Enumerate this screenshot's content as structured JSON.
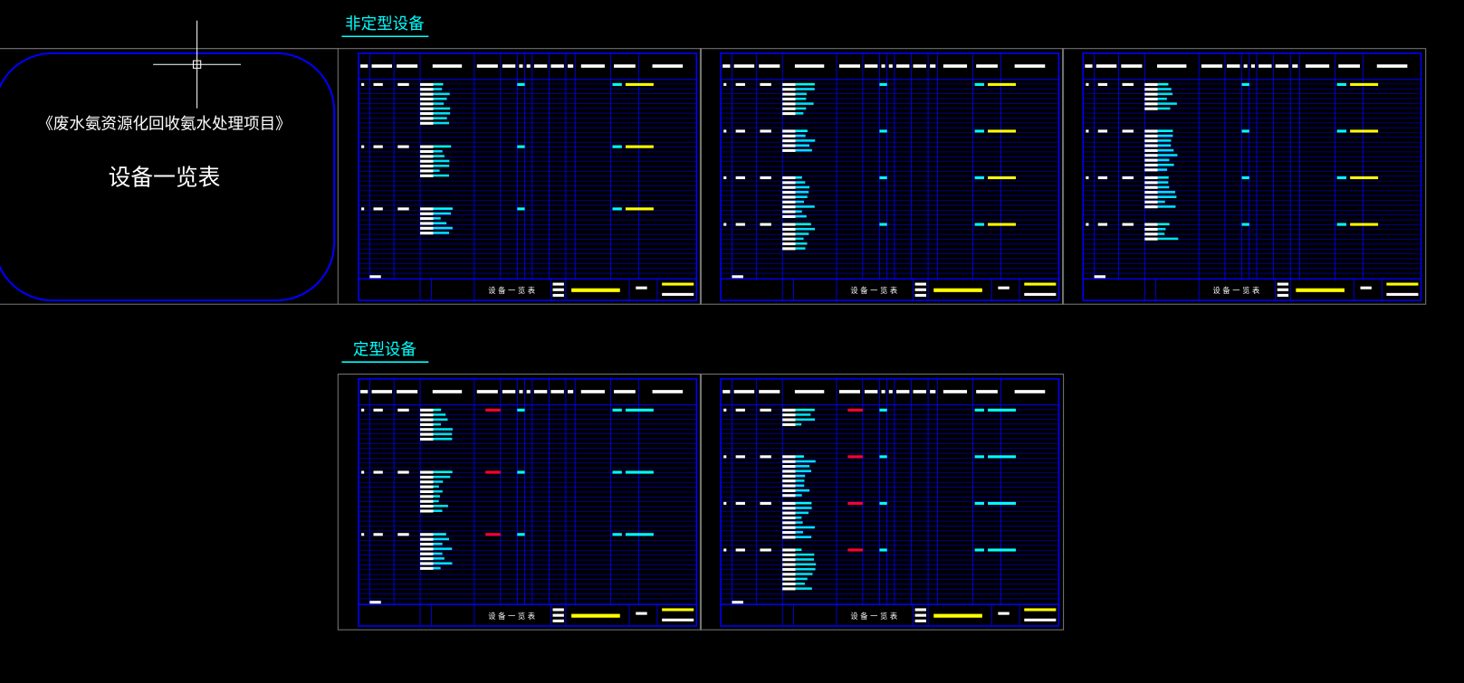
{
  "sections": {
    "non_standard": "非定型设备",
    "standard": "定型设备"
  },
  "cover": {
    "project": "《废水氨资源化回收氨水处理项目》",
    "title": "设备一览表"
  },
  "sheets": [
    {
      "title": "设 备 一 览 表"
    },
    {
      "title": "设 备 一 览 表"
    },
    {
      "title": "设 备 一 览 表"
    },
    {
      "title": "设 备 一 览 表"
    },
    {
      "title": "设 备 一 览 表"
    }
  ]
}
